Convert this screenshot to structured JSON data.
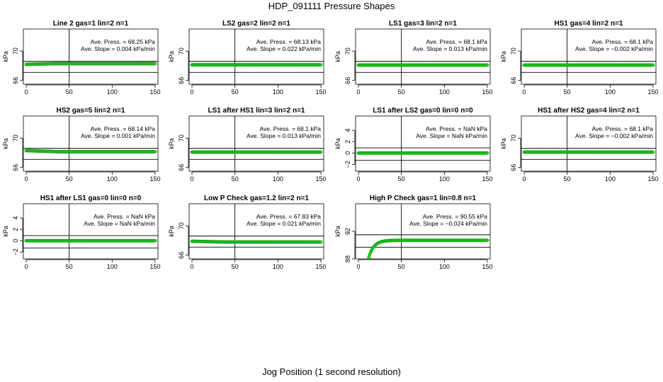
{
  "figure": {
    "title": "HDP_091111  Pressure Shapes",
    "xlabel": "Jog Position (1 second resolution)"
  },
  "colors": {
    "points": "#22cc22",
    "point_edge": "#0a8a0a",
    "lines": "#000000"
  },
  "chart_data": [
    {
      "type": "scatter",
      "title": "Line 2 gas=1 lin=2 n=1",
      "ylabel": "kPa",
      "xlim": [
        0,
        150
      ],
      "ylim": [
        65.5,
        73
      ],
      "xticks": [
        "0",
        "50",
        "100",
        "150"
      ],
      "xtick_values": [
        0,
        50,
        100,
        150
      ],
      "yticks": [
        "66",
        "70"
      ],
      "ytick_values": [
        66,
        70
      ],
      "hlines": [
        68.6,
        67.1
      ],
      "vline": 50,
      "annotation": [
        "Ave. Press. =  68.25  kPa",
        "Ave. Slope =  0.004  kPa/min"
      ],
      "series": [
        {
          "x_range": [
            0,
            150
          ],
          "y_start": 68.2,
          "y_end": 68.3
        }
      ]
    },
    {
      "type": "scatter",
      "title": "LS2 gas=2 lin=2 n=1",
      "ylabel": "kPa",
      "xlim": [
        0,
        150
      ],
      "ylim": [
        65.5,
        73
      ],
      "xticks": [
        "0",
        "50",
        "100",
        "150"
      ],
      "xtick_values": [
        0,
        50,
        100,
        150
      ],
      "yticks": [
        "66",
        "70"
      ],
      "ytick_values": [
        66,
        70
      ],
      "hlines": [
        68.6,
        67.1
      ],
      "vline": 50,
      "annotation": [
        "Ave. Press. =  68.13  kPa",
        "Ave. Slope =  0.022  kPa/min"
      ],
      "series": [
        {
          "x_range": [
            0,
            150
          ],
          "y_start": 68.13,
          "y_end": 68.13
        }
      ]
    },
    {
      "type": "scatter",
      "title": "LS1 gas=3 lin=2 n=1",
      "ylabel": "kPa",
      "xlim": [
        0,
        150
      ],
      "ylim": [
        65.5,
        73
      ],
      "xticks": [
        "0",
        "50",
        "100",
        "150"
      ],
      "xtick_values": [
        0,
        50,
        100,
        150
      ],
      "yticks": [
        "66",
        "70"
      ],
      "ytick_values": [
        66,
        70
      ],
      "hlines": [
        68.6,
        67.1
      ],
      "vline": 50,
      "annotation": [
        "Ave. Press. =  68.1  kPa",
        "Ave. Slope =  0.013  kPa/min"
      ],
      "series": [
        {
          "x_range": [
            0,
            150
          ],
          "y_start": 68.1,
          "y_end": 68.1
        }
      ]
    },
    {
      "type": "scatter",
      "title": "HS1 gas=4 lin=2 n=1",
      "ylabel": "kPa",
      "xlim": [
        0,
        150
      ],
      "ylim": [
        65.5,
        73
      ],
      "xticks": [
        "0",
        "50",
        "100",
        "150"
      ],
      "xtick_values": [
        0,
        50,
        100,
        150
      ],
      "yticks": [
        "66",
        "70"
      ],
      "ytick_values": [
        66,
        70
      ],
      "hlines": [
        68.6,
        67.1
      ],
      "vline": 50,
      "annotation": [
        "Ave. Press. =  68.1  kPa",
        "Ave. Slope =  −0.002  kPa/min"
      ],
      "series": [
        {
          "x_range": [
            0,
            150
          ],
          "y_start": 68.1,
          "y_end": 68.1
        }
      ]
    },
    {
      "type": "scatter",
      "title": "HS2 gas=5 lin=2 n=1",
      "ylabel": "kPa",
      "xlim": [
        0,
        150
      ],
      "ylim": [
        65.5,
        73
      ],
      "xticks": [
        "0",
        "50",
        "100",
        "150"
      ],
      "xtick_values": [
        0,
        50,
        100,
        150
      ],
      "yticks": [
        "66",
        "70"
      ],
      "ytick_values": [
        66,
        70
      ],
      "hlines": [
        68.6,
        67.1
      ],
      "vline": 50,
      "annotation": [
        "Ave. Press. =  68.14  kPa",
        "Ave. Slope =  0.001  kPa/min"
      ],
      "series": [
        {
          "x_range": [
            0,
            150
          ],
          "y_start": 68.3,
          "y_end": 68.14
        }
      ]
    },
    {
      "type": "scatter",
      "title": "LS1 after HS1 lin=3 lin=2 n=1",
      "ylabel": "kPa",
      "xlim": [
        0,
        150
      ],
      "ylim": [
        65.5,
        73
      ],
      "xticks": [
        "0",
        "50",
        "100",
        "150"
      ],
      "xtick_values": [
        0,
        50,
        100,
        150
      ],
      "yticks": [
        "66",
        "70"
      ],
      "ytick_values": [
        66,
        70
      ],
      "hlines": [
        68.6,
        67.1
      ],
      "vline": 50,
      "annotation": [
        "Ave. Press. =  68.1  kPa",
        "Ave. Slope =  0.013  kPa/min"
      ],
      "series": [
        {
          "x_range": [
            0,
            150
          ],
          "y_start": 68.1,
          "y_end": 68.1
        }
      ]
    },
    {
      "type": "scatter",
      "title": "LS1 after LS2 gas=0 lin=0 n=0",
      "ylabel": "kPa",
      "xlim": [
        0,
        150
      ],
      "ylim": [
        -3.2,
        6.5
      ],
      "xticks": [
        "0",
        "50",
        "100",
        "150"
      ],
      "xtick_values": [
        0,
        50,
        100,
        150
      ],
      "yticks": [
        "−2",
        "0",
        "2",
        "4"
      ],
      "ytick_values": [
        -2,
        0,
        2,
        4
      ],
      "hlines": [
        0.9,
        -1.3
      ],
      "vline": 50,
      "annotation": [
        "Ave. Press. =  NaN  kPa",
        "Ave. Slope =  NaN  kPa/min"
      ],
      "series": [
        {
          "x_range": [
            0,
            150
          ],
          "y_start": 0,
          "y_end": 0
        }
      ]
    },
    {
      "type": "scatter",
      "title": "HS1 after HS2 gas=4 lin=2 n=1",
      "ylabel": "kPa",
      "xlim": [
        0,
        150
      ],
      "ylim": [
        65.5,
        73
      ],
      "xticks": [
        "0",
        "50",
        "100",
        "150"
      ],
      "xtick_values": [
        0,
        50,
        100,
        150
      ],
      "yticks": [
        "66",
        "70"
      ],
      "ytick_values": [
        66,
        70
      ],
      "hlines": [
        68.6,
        67.1
      ],
      "vline": 50,
      "annotation": [
        "Ave. Press. =  68.1  kPa",
        "Ave. Slope =  −0.002  kPa/min"
      ],
      "series": [
        {
          "x_range": [
            0,
            150
          ],
          "y_start": 68.1,
          "y_end": 68.1
        }
      ]
    },
    {
      "type": "scatter",
      "title": "HS1 after LS1 gas=0 lin=0 n=0",
      "ylabel": "kPa",
      "xlim": [
        0,
        150
      ],
      "ylim": [
        -3.2,
        6.5
      ],
      "xticks": [
        "0",
        "50",
        "100",
        "150"
      ],
      "xtick_values": [
        0,
        50,
        100,
        150
      ],
      "yticks": [
        "−2",
        "0",
        "2",
        "4"
      ],
      "ytick_values": [
        -2,
        0,
        2,
        4
      ],
      "hlines": [
        0.9,
        -1.3
      ],
      "vline": 50,
      "annotation": [
        "Ave. Press. =  NaN  kPa",
        "Ave. Slope =  NaN  kPa/min"
      ],
      "series": [
        {
          "x_range": [
            0,
            150
          ],
          "y_start": 0,
          "y_end": 0
        }
      ]
    },
    {
      "type": "scatter",
      "title": "Low P Check gas=1.2 lin=2 n=1",
      "ylabel": "kPa",
      "xlim": [
        0,
        150
      ],
      "ylim": [
        65.5,
        73
      ],
      "xticks": [
        "0",
        "50",
        "100",
        "150"
      ],
      "xtick_values": [
        0,
        50,
        100,
        150
      ],
      "yticks": [
        "66",
        "70"
      ],
      "ytick_values": [
        66,
        70
      ],
      "hlines": [
        68.6,
        67.1
      ],
      "vline": 50,
      "annotation": [
        "Ave. Press. =  67.83  kPa",
        "Ave. Slope =  0.021  kPa/min"
      ],
      "series": [
        {
          "x_range": [
            0,
            150
          ],
          "y_start": 67.9,
          "y_end": 67.8
        }
      ]
    },
    {
      "type": "scatter",
      "title": "High P Check gas=1 lin=0.8 n=1",
      "ylabel": "kPa",
      "xlim": [
        0,
        150
      ],
      "ylim": [
        88,
        96
      ],
      "xticks": [
        "0",
        "50",
        "100",
        "150"
      ],
      "xtick_values": [
        0,
        50,
        100,
        150
      ],
      "yticks": [
        "88",
        "92"
      ],
      "ytick_values": [
        88,
        92
      ],
      "hlines": [
        91.5,
        89.7
      ],
      "vline": 50,
      "annotation": [
        "Ave. Press. =  90.55  kPa",
        "Ave. Slope =  −0.024  kPa/min"
      ],
      "series": [
        {
          "x_range": [
            12,
            150
          ],
          "y_start": 88.2,
          "y_end": 90.7
        }
      ]
    }
  ]
}
